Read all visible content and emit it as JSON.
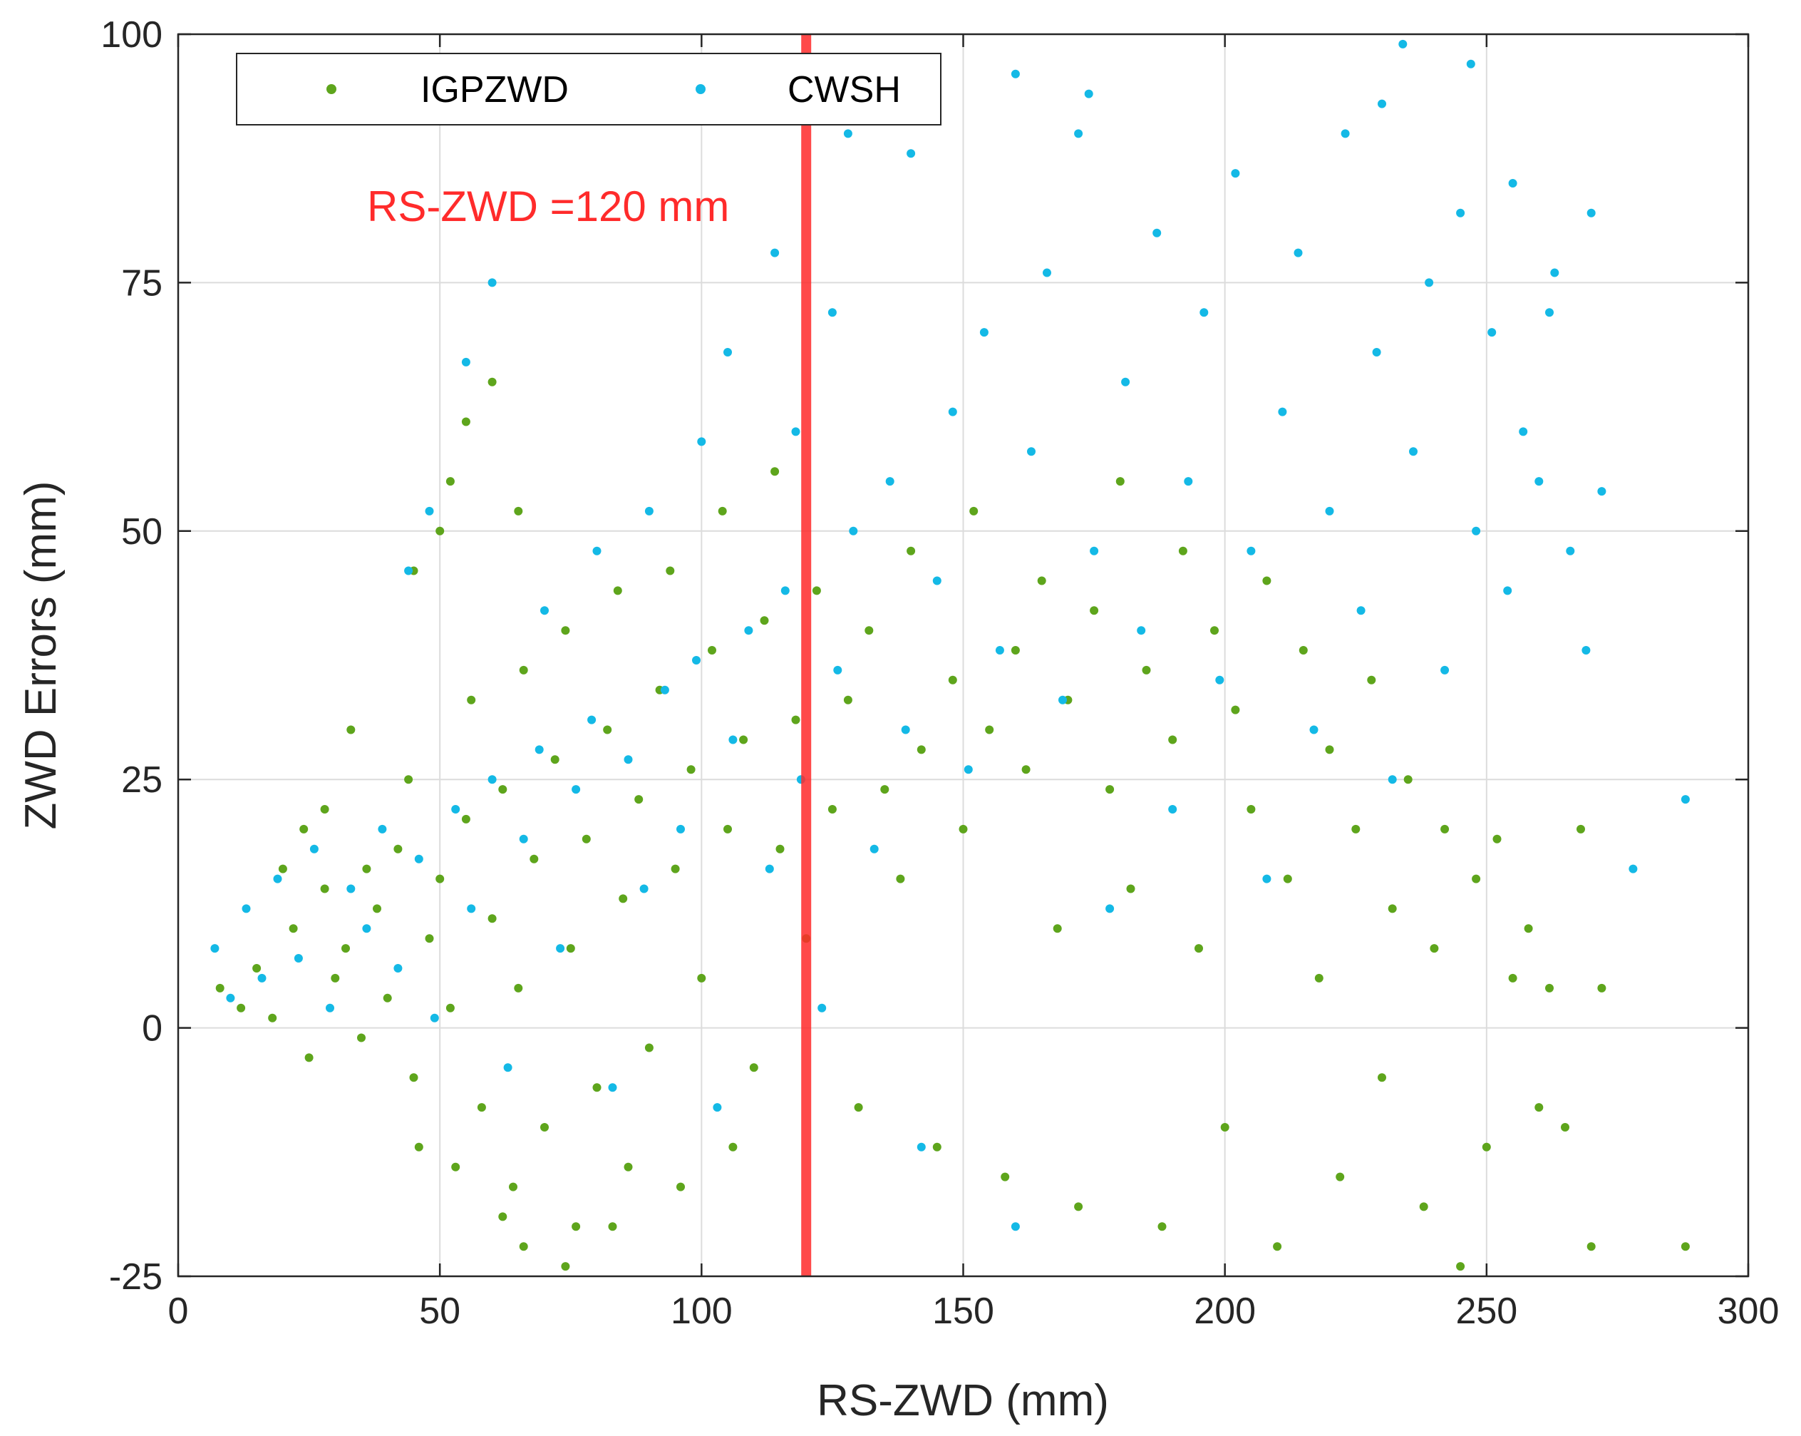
{
  "chart_data": {
    "type": "scatter",
    "xlabel": "RS-ZWD (mm)",
    "ylabel": "ZWD Errors (mm)",
    "xlim": [
      0,
      300
    ],
    "ylim": [
      -25,
      100
    ],
    "xticks": [
      0,
      50,
      100,
      150,
      200,
      250,
      300
    ],
    "yticks": [
      -25,
      0,
      25,
      50,
      75,
      100
    ],
    "xtick_labels": [
      "0",
      "50",
      "100",
      "150",
      "200",
      "250",
      "300"
    ],
    "ytick_labels": [
      "-25",
      "0",
      "25",
      "50",
      "75",
      "100"
    ],
    "grid": true,
    "legend_position": "top-left",
    "series": [
      {
        "name": "IGPZWD",
        "color": "#5ea51c",
        "points": [
          [
            8,
            4
          ],
          [
            12,
            2
          ],
          [
            15,
            6
          ],
          [
            18,
            1
          ],
          [
            22,
            10
          ],
          [
            25,
            -3
          ],
          [
            28,
            14
          ],
          [
            30,
            5
          ],
          [
            32,
            8
          ],
          [
            35,
            -1
          ],
          [
            38,
            12
          ],
          [
            40,
            3
          ],
          [
            42,
            18
          ],
          [
            45,
            -5
          ],
          [
            48,
            9
          ],
          [
            50,
            15
          ],
          [
            52,
            2
          ],
          [
            55,
            21
          ],
          [
            58,
            -8
          ],
          [
            60,
            11
          ],
          [
            62,
            24
          ],
          [
            65,
            4
          ],
          [
            68,
            17
          ],
          [
            70,
            -10
          ],
          [
            72,
            27
          ],
          [
            75,
            8
          ],
          [
            78,
            19
          ],
          [
            80,
            -6
          ],
          [
            82,
            30
          ],
          [
            85,
            13
          ],
          [
            88,
            23
          ],
          [
            90,
            -2
          ],
          [
            92,
            34
          ],
          [
            95,
            16
          ],
          [
            98,
            26
          ],
          [
            100,
            5
          ],
          [
            102,
            38
          ],
          [
            105,
            20
          ],
          [
            108,
            29
          ],
          [
            110,
            -4
          ],
          [
            112,
            41
          ],
          [
            115,
            18
          ],
          [
            118,
            31
          ],
          [
            120,
            9
          ],
          [
            122,
            44
          ],
          [
            125,
            22
          ],
          [
            128,
            33
          ],
          [
            130,
            -8
          ],
          [
            132,
            40
          ],
          [
            135,
            24
          ],
          [
            138,
            15
          ],
          [
            140,
            48
          ],
          [
            142,
            28
          ],
          [
            145,
            -12
          ],
          [
            148,
            35
          ],
          [
            150,
            20
          ],
          [
            152,
            52
          ],
          [
            155,
            30
          ],
          [
            158,
            -15
          ],
          [
            160,
            38
          ],
          [
            162,
            26
          ],
          [
            165,
            45
          ],
          [
            168,
            10
          ],
          [
            170,
            33
          ],
          [
            172,
            -18
          ],
          [
            175,
            42
          ],
          [
            178,
            24
          ],
          [
            180,
            55
          ],
          [
            182,
            14
          ],
          [
            185,
            36
          ],
          [
            188,
            -20
          ],
          [
            190,
            29
          ],
          [
            192,
            48
          ],
          [
            195,
            8
          ],
          [
            198,
            40
          ],
          [
            200,
            -10
          ],
          [
            202,
            32
          ],
          [
            205,
            22
          ],
          [
            208,
            45
          ],
          [
            210,
            -22
          ],
          [
            212,
            15
          ],
          [
            215,
            38
          ],
          [
            218,
            5
          ],
          [
            220,
            28
          ],
          [
            222,
            -15
          ],
          [
            225,
            20
          ],
          [
            228,
            35
          ],
          [
            230,
            -5
          ],
          [
            232,
            12
          ],
          [
            235,
            25
          ],
          [
            238,
            -18
          ],
          [
            240,
            8
          ],
          [
            242,
            20
          ],
          [
            245,
            -24
          ],
          [
            248,
            15
          ],
          [
            250,
            -12
          ],
          [
            252,
            19
          ],
          [
            255,
            5
          ],
          [
            258,
            10
          ],
          [
            260,
            -8
          ],
          [
            262,
            4
          ],
          [
            265,
            -10
          ],
          [
            268,
            20
          ],
          [
            270,
            -22
          ],
          [
            272,
            4
          ],
          [
            288,
            -22
          ],
          [
            20,
            16
          ],
          [
            24,
            20
          ],
          [
            28,
            22
          ],
          [
            33,
            30
          ],
          [
            36,
            16
          ],
          [
            44,
            25
          ],
          [
            46,
            -12
          ],
          [
            53,
            -14
          ],
          [
            56,
            33
          ],
          [
            64,
            -16
          ],
          [
            66,
            36
          ],
          [
            74,
            40
          ],
          [
            76,
            -20
          ],
          [
            84,
            44
          ],
          [
            86,
            -14
          ],
          [
            94,
            46
          ],
          [
            96,
            -16
          ],
          [
            104,
            52
          ],
          [
            106,
            -12
          ],
          [
            114,
            56
          ],
          [
            55,
            61
          ],
          [
            60,
            65
          ],
          [
            65,
            52
          ],
          [
            52,
            55
          ],
          [
            45,
            46
          ],
          [
            50,
            50
          ],
          [
            74,
            -24
          ],
          [
            83,
            -20
          ],
          [
            66,
            -22
          ],
          [
            62,
            -19
          ]
        ]
      },
      {
        "name": "CWSH",
        "color": "#14b9e6",
        "points": [
          [
            7,
            8
          ],
          [
            10,
            3
          ],
          [
            13,
            12
          ],
          [
            16,
            5
          ],
          [
            19,
            15
          ],
          [
            23,
            7
          ],
          [
            26,
            18
          ],
          [
            29,
            2
          ],
          [
            33,
            14
          ],
          [
            36,
            10
          ],
          [
            39,
            20
          ],
          [
            42,
            6
          ],
          [
            46,
            17
          ],
          [
            49,
            1
          ],
          [
            53,
            22
          ],
          [
            56,
            12
          ],
          [
            60,
            25
          ],
          [
            63,
            -4
          ],
          [
            66,
            19
          ],
          [
            69,
            28
          ],
          [
            73,
            8
          ],
          [
            76,
            24
          ],
          [
            79,
            31
          ],
          [
            83,
            -6
          ],
          [
            86,
            27
          ],
          [
            89,
            14
          ],
          [
            93,
            34
          ],
          [
            96,
            20
          ],
          [
            99,
            37
          ],
          [
            103,
            -8
          ],
          [
            106,
            29
          ],
          [
            109,
            40
          ],
          [
            113,
            16
          ],
          [
            116,
            44
          ],
          [
            119,
            25
          ],
          [
            123,
            2
          ],
          [
            126,
            36
          ],
          [
            129,
            50
          ],
          [
            133,
            18
          ],
          [
            136,
            55
          ],
          [
            139,
            30
          ],
          [
            142,
            -12
          ],
          [
            145,
            45
          ],
          [
            148,
            62
          ],
          [
            151,
            26
          ],
          [
            154,
            70
          ],
          [
            157,
            38
          ],
          [
            160,
            -20
          ],
          [
            163,
            58
          ],
          [
            166,
            76
          ],
          [
            169,
            33
          ],
          [
            172,
            90
          ],
          [
            175,
            48
          ],
          [
            178,
            12
          ],
          [
            181,
            65
          ],
          [
            184,
            40
          ],
          [
            187,
            80
          ],
          [
            190,
            22
          ],
          [
            193,
            55
          ],
          [
            196,
            72
          ],
          [
            199,
            35
          ],
          [
            202,
            86
          ],
          [
            205,
            48
          ],
          [
            208,
            15
          ],
          [
            211,
            62
          ],
          [
            214,
            78
          ],
          [
            217,
            30
          ],
          [
            220,
            52
          ],
          [
            223,
            90
          ],
          [
            226,
            42
          ],
          [
            229,
            68
          ],
          [
            232,
            25
          ],
          [
            234,
            99
          ],
          [
            236,
            58
          ],
          [
            239,
            75
          ],
          [
            242,
            36
          ],
          [
            245,
            82
          ],
          [
            248,
            50
          ],
          [
            251,
            70
          ],
          [
            254,
            44
          ],
          [
            257,
            60
          ],
          [
            260,
            55
          ],
          [
            263,
            76
          ],
          [
            266,
            48
          ],
          [
            269,
            38
          ],
          [
            270,
            82
          ],
          [
            272,
            54
          ],
          [
            278,
            16
          ],
          [
            288,
            23
          ],
          [
            60,
            75
          ],
          [
            55,
            67
          ],
          [
            48,
            52
          ],
          [
            44,
            46
          ],
          [
            70,
            42
          ],
          [
            80,
            48
          ],
          [
            90,
            52
          ],
          [
            100,
            59
          ],
          [
            105,
            68
          ],
          [
            114,
            78
          ],
          [
            118,
            60
          ],
          [
            128,
            90
          ],
          [
            125,
            72
          ],
          [
            140,
            88
          ],
          [
            160,
            96
          ],
          [
            174,
            94
          ],
          [
            247,
            97
          ],
          [
            230,
            93
          ],
          [
            255,
            85
          ],
          [
            262,
            72
          ]
        ]
      }
    ],
    "annotations": [
      {
        "type": "vline",
        "x": 120,
        "color": "#ff2b2b",
        "label": "RS-ZWD =120 mm"
      }
    ]
  }
}
